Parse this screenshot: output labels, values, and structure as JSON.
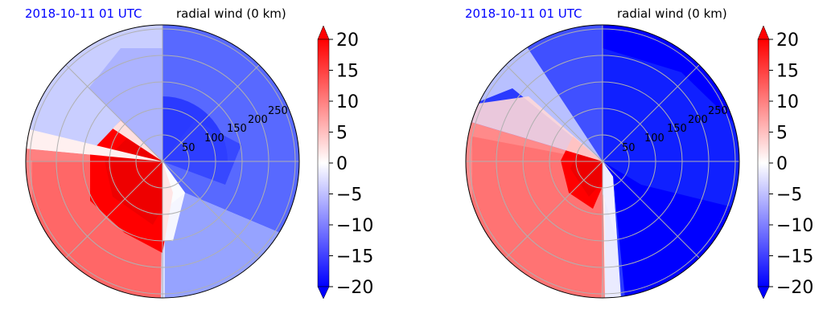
{
  "colors": {
    "positive": "#ff0000",
    "negative": "#0000ff",
    "zero": "#ffffff",
    "grid": "#b0b0b0",
    "time_label": "#0000ff"
  },
  "chart_data": [
    {
      "type": "heatmap",
      "projection": "polar",
      "time_label": "2018-10-11 01 UTC",
      "title": "radial wind (0 km)",
      "radial_ticks": [
        "50",
        "100",
        "150",
        "200",
        "250"
      ],
      "radial_range": [
        0,
        280
      ],
      "radial_grid_step": 33,
      "angular_grid_deg": [
        0,
        45,
        90,
        135,
        180,
        225,
        270,
        315
      ],
      "grid": true,
      "colorbar": {
        "ticks": [
          "20",
          "15",
          "10",
          "5",
          "0",
          "−5",
          "−10",
          "−15",
          "−20"
        ],
        "range": [
          -20,
          20
        ],
        "extend": "both",
        "cmap": "bwr"
      },
      "field_summary": {
        "center_sw_quadrant_max": 20,
        "east_side_min": -15,
        "outer_ring_mean": 3
      }
    },
    {
      "type": "heatmap",
      "projection": "polar",
      "time_label": "2018-10-11 01 UTC",
      "title": "radial wind (0 km)",
      "radial_ticks": [
        "50",
        "100",
        "150",
        "200",
        "250"
      ],
      "radial_range": [
        0,
        280
      ],
      "radial_grid_step": 33,
      "angular_grid_deg": [
        0,
        45,
        90,
        135,
        180,
        225,
        270,
        315
      ],
      "grid": true,
      "colorbar": {
        "ticks": [
          "20",
          "15",
          "10",
          "5",
          "0",
          "−5",
          "−10",
          "−15",
          "−20"
        ],
        "range": [
          -20,
          20
        ],
        "extend": "both",
        "cmap": "bwr"
      },
      "field_summary": {
        "center_sw_quadrant_max": 20,
        "east_side_min": -20,
        "outer_ring_mean": 5
      }
    }
  ]
}
